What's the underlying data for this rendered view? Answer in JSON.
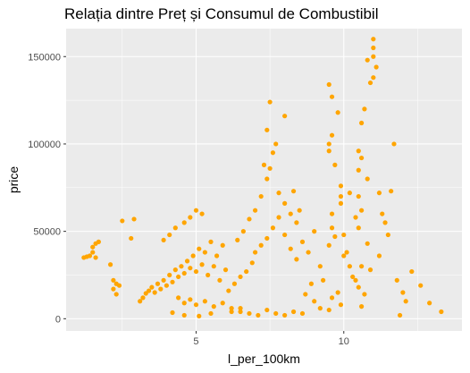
{
  "chart_data": {
    "type": "scatter",
    "title": "Relația dintre Preț și Consumul de Combustibil",
    "xlabel": "l_per_100km",
    "ylabel": "price",
    "xlim": [
      0.6,
      14.0
    ],
    "ylim": [
      -7000,
      166000
    ],
    "x_ticks": [
      5,
      10
    ],
    "x_tick_labels": [
      "5",
      "10"
    ],
    "y_ticks": [
      0,
      50000,
      100000,
      150000
    ],
    "y_tick_labels": [
      "0",
      "50000",
      "100000",
      "150000"
    ],
    "grid": true,
    "legend": "none",
    "point_color": "#FFA500",
    "panel_color": "#EBEBEB",
    "series": [
      {
        "points": [
          [
            1.2,
            35000
          ],
          [
            1.3,
            35500
          ],
          [
            1.4,
            36000
          ],
          [
            1.5,
            41000
          ],
          [
            1.6,
            43000
          ],
          [
            1.5,
            38000
          ],
          [
            1.7,
            44000
          ],
          [
            1.6,
            35000
          ],
          [
            2.2,
            22000
          ],
          [
            2.3,
            20000
          ],
          [
            2.2,
            17000
          ],
          [
            2.4,
            19000
          ],
          [
            2.3,
            14000
          ],
          [
            2.1,
            31000
          ],
          [
            2.5,
            56000
          ],
          [
            2.9,
            57000
          ],
          [
            2.8,
            46000
          ],
          [
            3.1,
            10000
          ],
          [
            3.2,
            12000
          ],
          [
            3.3,
            14500
          ],
          [
            3.4,
            16000
          ],
          [
            3.5,
            18000
          ],
          [
            3.6,
            15000
          ],
          [
            3.7,
            20000
          ],
          [
            3.8,
            17000
          ],
          [
            3.9,
            22000
          ],
          [
            4.0,
            19000
          ],
          [
            4.1,
            25000
          ],
          [
            4.2,
            21000
          ],
          [
            4.3,
            28000
          ],
          [
            4.4,
            24000
          ],
          [
            4.5,
            30000
          ],
          [
            4.6,
            26000
          ],
          [
            4.7,
            33000
          ],
          [
            4.8,
            29000
          ],
          [
            4.9,
            36000
          ],
          [
            5.0,
            27000
          ],
          [
            5.1,
            40000
          ],
          [
            5.2,
            31000
          ],
          [
            5.3,
            38000
          ],
          [
            5.4,
            25000
          ],
          [
            5.5,
            44000
          ],
          [
            5.6,
            30000
          ],
          [
            5.7,
            36000
          ],
          [
            5.8,
            22000
          ],
          [
            5.9,
            42000
          ],
          [
            6.0,
            28000
          ],
          [
            3.9,
            45000
          ],
          [
            4.1,
            48000
          ],
          [
            4.3,
            52000
          ],
          [
            4.6,
            55000
          ],
          [
            4.8,
            58000
          ],
          [
            5.0,
            62000
          ],
          [
            5.2,
            60000
          ],
          [
            4.4,
            12000
          ],
          [
            4.6,
            9000
          ],
          [
            4.8,
            11000
          ],
          [
            5.0,
            8000
          ],
          [
            5.3,
            10000
          ],
          [
            5.6,
            7000
          ],
          [
            5.9,
            9000
          ],
          [
            6.2,
            6000
          ],
          [
            6.5,
            4000
          ],
          [
            6.8,
            3000
          ],
          [
            7.1,
            2000
          ],
          [
            7.4,
            5000
          ],
          [
            7.7,
            3000
          ],
          [
            8.0,
            2000
          ],
          [
            8.3,
            4000
          ],
          [
            8.6,
            3000
          ],
          [
            4.2,
            3500
          ],
          [
            4.6,
            2000
          ],
          [
            5.1,
            1500
          ],
          [
            5.5,
            3000
          ],
          [
            6.1,
            16000
          ],
          [
            6.3,
            20000
          ],
          [
            6.5,
            24000
          ],
          [
            6.7,
            27000
          ],
          [
            6.9,
            32000
          ],
          [
            7.0,
            38000
          ],
          [
            7.2,
            42000
          ],
          [
            7.4,
            46000
          ],
          [
            7.6,
            52000
          ],
          [
            7.8,
            58000
          ],
          [
            8.0,
            48000
          ],
          [
            8.2,
            40000
          ],
          [
            8.4,
            34000
          ],
          [
            8.6,
            44000
          ],
          [
            8.8,
            38000
          ],
          [
            6.4,
            45000
          ],
          [
            6.6,
            50000
          ],
          [
            6.8,
            57000
          ],
          [
            7.0,
            62000
          ],
          [
            7.2,
            70000
          ],
          [
            7.4,
            80000
          ],
          [
            7.3,
            88000
          ],
          [
            7.5,
            86000
          ],
          [
            7.8,
            72000
          ],
          [
            8.0,
            66000
          ],
          [
            8.2,
            60000
          ],
          [
            8.4,
            55000
          ],
          [
            7.6,
            95000
          ],
          [
            7.7,
            100000
          ],
          [
            7.4,
            108000
          ],
          [
            7.5,
            124000
          ],
          [
            8.0,
            116000
          ],
          [
            8.3,
            73000
          ],
          [
            8.5,
            62000
          ],
          [
            9.0,
            50000
          ],
          [
            9.2,
            30000
          ],
          [
            9.3,
            22000
          ],
          [
            9.5,
            42000
          ],
          [
            9.6,
            60000
          ],
          [
            9.5,
            100000
          ],
          [
            9.6,
            105000
          ],
          [
            9.6,
            127000
          ],
          [
            9.5,
            134000
          ],
          [
            9.8,
            118000
          ],
          [
            9.5,
            96000
          ],
          [
            9.7,
            88000
          ],
          [
            9.9,
            76000
          ],
          [
            9.9,
            70000
          ],
          [
            9.9,
            66000
          ],
          [
            9.6,
            52000
          ],
          [
            9.7,
            47000
          ],
          [
            9.6,
            12000
          ],
          [
            9.8,
            15000
          ],
          [
            9.9,
            8000
          ],
          [
            9.5,
            5000
          ],
          [
            9.2,
            6000
          ],
          [
            10.0,
            48000
          ],
          [
            10.1,
            38000
          ],
          [
            10.2,
            30000
          ],
          [
            10.3,
            24000
          ],
          [
            10.0,
            36000
          ],
          [
            10.2,
            72000
          ],
          [
            10.5,
            70000
          ],
          [
            10.6,
            62000
          ],
          [
            10.4,
            58000
          ],
          [
            10.5,
            52000
          ],
          [
            10.6,
            112000
          ],
          [
            10.7,
            120000
          ],
          [
            10.5,
            96000
          ],
          [
            10.5,
            85000
          ],
          [
            10.6,
            92000
          ],
          [
            10.5,
            18000
          ],
          [
            10.8,
            43000
          ],
          [
            10.6,
            30000
          ],
          [
            10.4,
            22000
          ],
          [
            10.7,
            14000
          ],
          [
            10.8,
            148000
          ],
          [
            10.9,
            135000
          ],
          [
            11.0,
            160000
          ],
          [
            11.0,
            155000
          ],
          [
            11.0,
            150000
          ],
          [
            11.1,
            144000
          ],
          [
            11.0,
            138000
          ],
          [
            10.8,
            80000
          ],
          [
            11.2,
            72000
          ],
          [
            11.3,
            60000
          ],
          [
            11.5,
            48000
          ],
          [
            11.6,
            73000
          ],
          [
            11.7,
            100000
          ],
          [
            11.4,
            55000
          ],
          [
            11.8,
            22000
          ],
          [
            12.0,
            15000
          ],
          [
            12.1,
            10000
          ],
          [
            12.3,
            27000
          ],
          [
            12.6,
            19000
          ],
          [
            12.9,
            9000
          ],
          [
            11.9,
            2000
          ],
          [
            13.3,
            4000
          ],
          [
            10.6,
            7000
          ],
          [
            10.9,
            28000
          ],
          [
            11.2,
            36000
          ],
          [
            8.9,
            20000
          ],
          [
            9.0,
            10000
          ],
          [
            8.7,
            14000
          ],
          [
            6.2,
            4000
          ],
          [
            6.5,
            6000
          ]
        ]
      }
    ]
  }
}
